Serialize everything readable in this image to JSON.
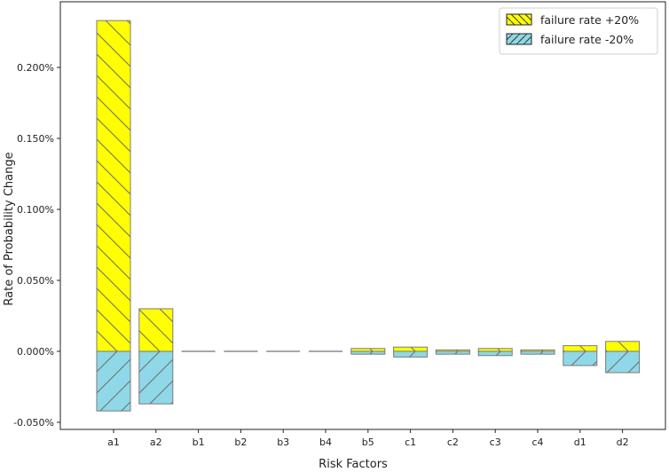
{
  "chart_data": {
    "type": "bar",
    "xlabel": "Risk Factors",
    "ylabel": "Rate of Probability Change",
    "categories": [
      "a1",
      "a2",
      "b1",
      "b2",
      "b3",
      "b4",
      "b5",
      "c1",
      "c2",
      "c3",
      "c4",
      "d1",
      "d2"
    ],
    "series": [
      {
        "name": "failure rate +20%",
        "values": [
          0.00233,
          0.0003,
          0.0,
          0.0,
          0.0,
          0.0,
          2e-05,
          3e-05,
          1e-05,
          2e-05,
          1e-05,
          4e-05,
          7e-05
        ],
        "color": "#ffff00",
        "hatch": "backslash"
      },
      {
        "name": "failure rate -20%",
        "values": [
          -0.00042,
          -0.00037,
          0.0,
          0.0,
          0.0,
          0.0,
          -2e-05,
          -4e-05,
          -2e-05,
          -3e-05,
          -2e-05,
          -0.0001,
          -0.00015
        ],
        "color": "#8fd8e8",
        "hatch": "slash"
      }
    ],
    "ylim": [
      -0.00055,
      0.00245
    ],
    "yticks": [
      -0.0005,
      0.0,
      0.0005,
      0.001,
      0.0015,
      0.002
    ],
    "ytick_labels": [
      "-0.050%",
      "0.000%",
      "0.050%",
      "0.100%",
      "0.150%",
      "0.200%"
    ],
    "legend_position": "top-right",
    "grid": false
  }
}
